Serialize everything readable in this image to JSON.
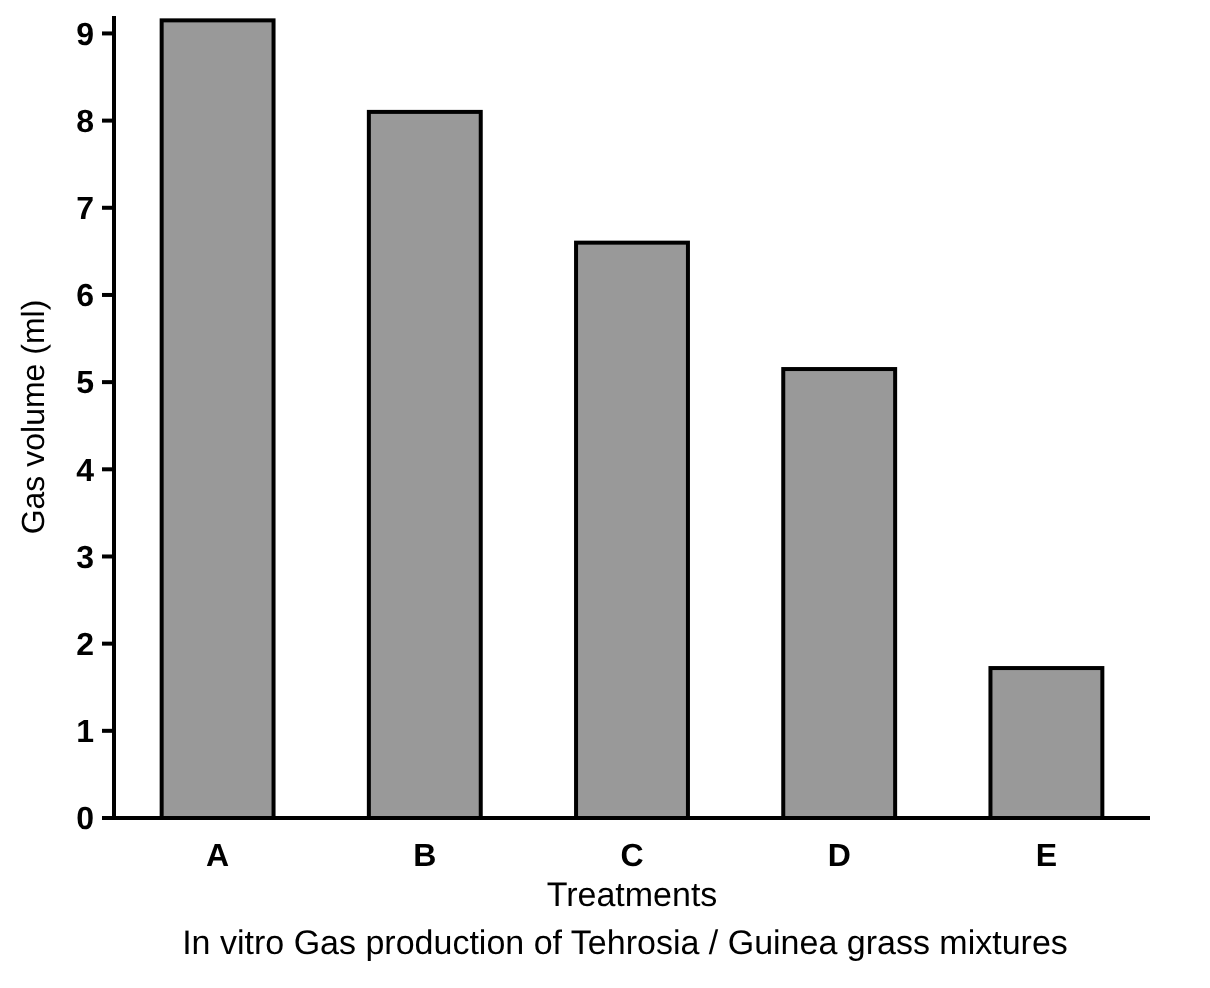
{
  "chart_data": {
    "type": "bar",
    "categories": [
      "A",
      "B",
      "C",
      "D",
      "E"
    ],
    "values": [
      9.15,
      8.1,
      6.6,
      5.15,
      1.72
    ],
    "color": "#999999",
    "ylim": [
      0,
      9.2
    ],
    "yticks": [
      0,
      1,
      2,
      3,
      4,
      5,
      6,
      7,
      8,
      9
    ],
    "xlabel": "Treatments",
    "ylabel": "Gas volume (ml)",
    "annotations": [
      "In vitro Gas production of Tehrosia / Guinea grass mixtures"
    ],
    "grid": false
  }
}
